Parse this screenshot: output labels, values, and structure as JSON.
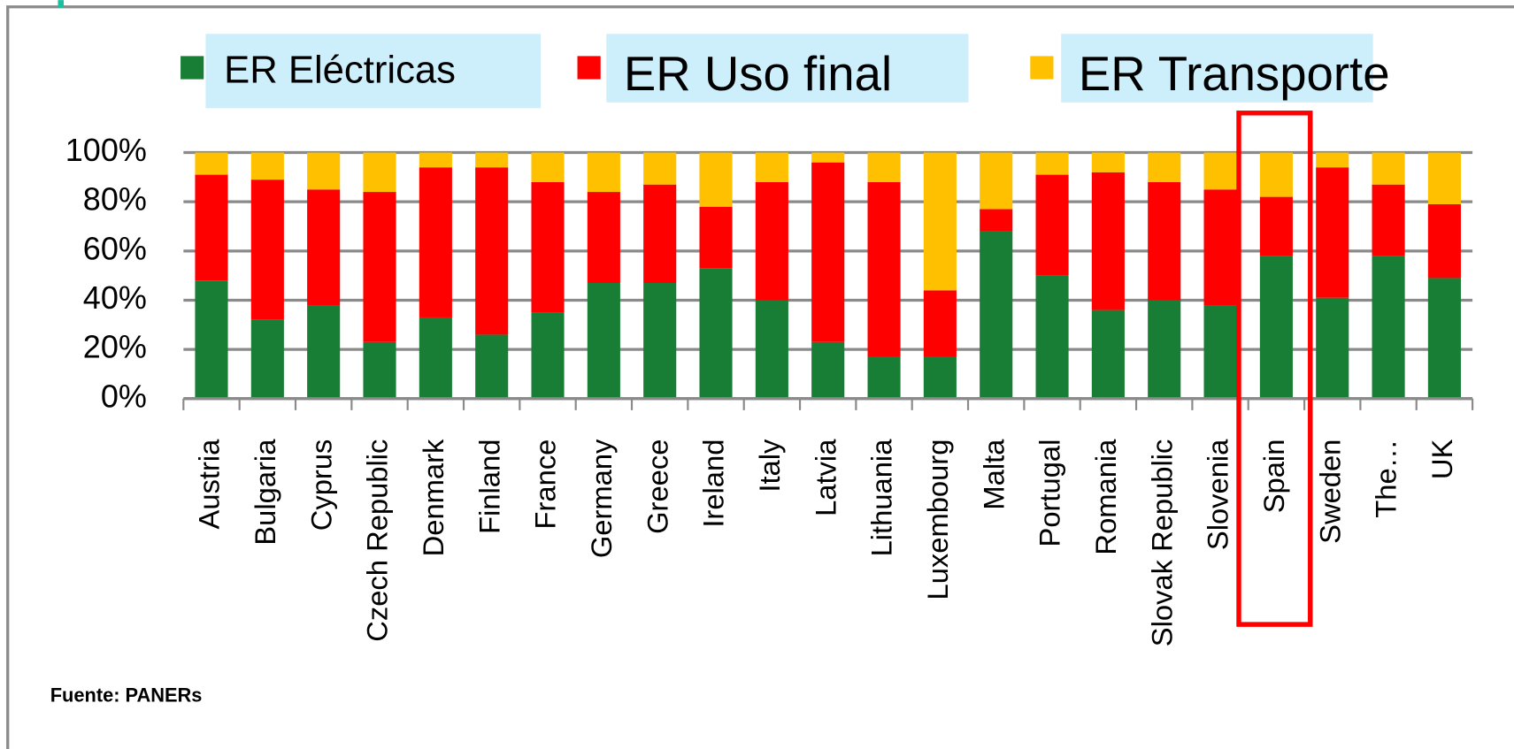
{
  "chart_data": {
    "type": "stacked_bar",
    "source": "Fuente: PANERs",
    "categories": [
      "Austria",
      "Bulgaria",
      "Cyprus",
      "Czech Republic",
      "Denmark",
      "Finland",
      "France",
      "Germany",
      "Greece",
      "Ireland",
      "Italy",
      "Latvia",
      "Lithuania",
      "Luxembourg",
      "Malta",
      "Portugal",
      "Romania",
      "Slovak Republic",
      "Slovenia",
      "Spain",
      "Sweden",
      "The…",
      "UK"
    ],
    "series": [
      {
        "name": "ER Eléctricas",
        "color": "#187d35",
        "values": [
          48,
          32,
          38,
          23,
          33,
          26,
          35,
          47,
          47,
          53,
          40,
          23,
          17,
          17,
          68,
          50,
          36,
          40,
          38,
          58,
          41,
          58,
          49
        ]
      },
      {
        "name": "ER Uso final",
        "color": "#ff0000",
        "values": [
          43,
          57,
          47,
          61,
          61,
          68,
          53,
          37,
          40,
          25,
          48,
          73,
          71,
          27,
          9,
          41,
          56,
          48,
          47,
          24,
          53,
          29,
          30
        ]
      },
      {
        "name": "ER Transporte",
        "color": "#ffc000",
        "values": [
          9,
          11,
          15,
          16,
          6,
          6,
          12,
          16,
          13,
          22,
          12,
          4,
          12,
          56,
          23,
          9,
          8,
          12,
          15,
          18,
          6,
          13,
          21
        ]
      }
    ],
    "ylim": [
      0,
      100
    ],
    "yticks": [
      {
        "value": 0,
        "label": "0%"
      },
      {
        "value": 20,
        "label": "20%"
      },
      {
        "value": 40,
        "label": "40%"
      },
      {
        "value": 60,
        "label": "60%"
      },
      {
        "value": 80,
        "label": "80%"
      },
      {
        "value": 100,
        "label": "100%"
      }
    ],
    "grid": true
  }
}
